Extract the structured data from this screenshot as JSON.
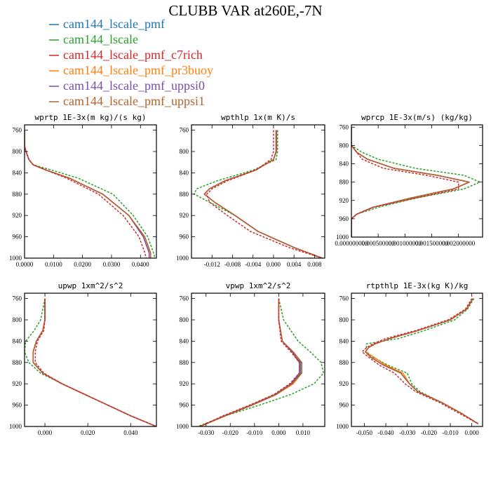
{
  "chart_data": {
    "title": "CLUBB VAR at260E,-7N",
    "series": [
      {
        "name": "cam144_lscale_pmf",
        "color": "#1f77b4"
      },
      {
        "name": "cam144_lscale",
        "color": "#2ca02c"
      },
      {
        "name": "cam144_lscale_pmf_c7rich",
        "color": "#d62728"
      },
      {
        "name": "cam144_lscale_pmf_pr3buoy",
        "color": "#ff7f0e"
      },
      {
        "name": "cam144_lscale_pmf_uppsi0",
        "color": "#7b4fa3"
      },
      {
        "name": "cam144_lscale_pmf_uppsi1",
        "color": "#b5622e"
      }
    ],
    "panels": [
      {
        "type": "line",
        "title": "wprtp  1E-3x(m kg)/(s kg)",
        "xlim": [
          0,
          0.0455
        ],
        "ylim": [
          1000,
          750
        ],
        "xticks": [
          0,
          0.01,
          0.02,
          0.03,
          0.04
        ],
        "xtick_labels": [
          "0.0000",
          "0.0100",
          "0.0200",
          "0.0300",
          "0.0400"
        ],
        "yticks": [
          760,
          800,
          840,
          880,
          920,
          960,
          1000
        ],
        "ytick_labels": [
          "760",
          "800",
          "840",
          "880",
          "920",
          "960",
          "1000"
        ],
        "p": [
          760,
          790,
          800,
          815,
          825,
          835,
          850,
          880,
          920,
          960,
          990,
          1000
        ],
        "lines": [
          [
            0.0,
            0.0,
            0.0005,
            0.0015,
            0.003,
            0.0075,
            0.0155,
            0.027,
            0.036,
            0.041,
            0.043,
            0.043
          ],
          [
            0.0,
            0.0,
            0.0005,
            0.0015,
            0.003,
            0.0095,
            0.0185,
            0.0305,
            0.0375,
            0.0425,
            0.0445,
            0.045
          ],
          [
            0.0,
            0.0,
            0.0005,
            0.0015,
            0.003,
            0.0075,
            0.0145,
            0.0255,
            0.034,
            0.0395,
            0.0415,
            0.042
          ],
          [
            0.0,
            0.0,
            0.0005,
            0.0015,
            0.003,
            0.0075,
            0.0155,
            0.027,
            0.036,
            0.041,
            0.043,
            0.043
          ],
          [
            0.0,
            0.0,
            0.0005,
            0.0015,
            0.003,
            0.0075,
            0.0155,
            0.027,
            0.036,
            0.041,
            0.043,
            0.043
          ],
          [
            0.0,
            0.0,
            0.0005,
            0.0015,
            0.003,
            0.0075,
            0.0155,
            0.027,
            0.036,
            0.0415,
            0.0435,
            0.0435
          ]
        ]
      },
      {
        "type": "line",
        "title": "wpthlp  1x(m K)/s",
        "xlim": [
          -0.016,
          0.01
        ],
        "ylim": [
          1000,
          750
        ],
        "xticks": [
          -0.012,
          -0.008,
          -0.004,
          0.0,
          0.004,
          0.008
        ],
        "xtick_labels": [
          "-0.012",
          "-0.008",
          "-0.004",
          "0.000",
          "0.004",
          "0.008"
        ],
        "yticks": [
          760,
          800,
          840,
          880,
          920,
          960,
          1000
        ],
        "ytick_labels": [
          "760",
          "800",
          "840",
          "880",
          "920",
          "960",
          "1000"
        ],
        "p": [
          760,
          800,
          815,
          835,
          855,
          870,
          880,
          895,
          920,
          950,
          980,
          1000
        ],
        "lines": [
          [
            0.0005,
            0.0005,
            0.0,
            -0.0035,
            -0.0095,
            -0.0125,
            -0.0135,
            -0.0115,
            -0.0075,
            -0.003,
            0.004,
            0.0095
          ],
          [
            0.0008,
            0.0008,
            0.0005,
            -0.004,
            -0.011,
            -0.015,
            -0.0155,
            -0.0125,
            -0.0075,
            -0.003,
            0.004,
            0.0095
          ],
          [
            0.0,
            0.0,
            -0.0005,
            -0.0035,
            -0.009,
            -0.012,
            -0.013,
            -0.0125,
            -0.009,
            -0.0045,
            0.003,
            0.0095
          ],
          [
            0.0005,
            0.0005,
            0.0,
            -0.0035,
            -0.0095,
            -0.0125,
            -0.0135,
            -0.0115,
            -0.0075,
            -0.003,
            0.004,
            0.0095
          ],
          [
            0.0005,
            0.0005,
            0.0,
            -0.0035,
            -0.0095,
            -0.0125,
            -0.0135,
            -0.0115,
            -0.0075,
            -0.003,
            0.004,
            0.0095
          ],
          [
            0.0006,
            0.0006,
            0.0,
            -0.0035,
            -0.0095,
            -0.0125,
            -0.0135,
            -0.0115,
            -0.0075,
            -0.003,
            0.004,
            0.0095
          ]
        ]
      },
      {
        "type": "line",
        "title": "wprcp  1E-3x(m/s) (kg/kg)",
        "xlim": [
          0,
          0.00245
        ],
        "ylim": [
          1000,
          755
        ],
        "xticks": [
          0,
          0.0005,
          0.001,
          0.0015,
          0.002
        ],
        "xtick_labels": [
          "0.000000000",
          "0.000500000",
          "0.001000000",
          "0.001500000",
          "0.002000000"
        ],
        "yticks": [
          760,
          800,
          840,
          880,
          920,
          960,
          1000
        ],
        "ytick_labels": [
          "760",
          "800",
          "840",
          "880",
          "920",
          "960",
          "1000"
        ],
        "p": [
          760,
          800,
          815,
          830,
          850,
          865,
          880,
          895,
          915,
          935,
          950,
          960,
          1000
        ],
        "lines": [
          [
            0.0,
            0.0,
            0.0001,
            0.0003,
            0.0008,
            0.0016,
            0.0022,
            0.0019,
            0.0011,
            0.0004,
            0.0001,
            0.0,
            0.0
          ],
          [
            0.0,
            0.0,
            0.0002,
            0.0005,
            0.0012,
            0.0021,
            0.0024,
            0.0021,
            0.0012,
            0.0005,
            0.0001,
            0.0,
            0.0
          ],
          [
            0.0,
            0.0,
            0.0001,
            0.0002,
            0.0006,
            0.0014,
            0.002,
            0.002,
            0.0012,
            0.0004,
            0.0001,
            0.0,
            0.0
          ],
          [
            0.0,
            0.0,
            0.0001,
            0.0003,
            0.0008,
            0.0016,
            0.0022,
            0.0019,
            0.0011,
            0.0004,
            0.0001,
            0.0,
            0.0
          ],
          [
            0.0,
            0.0,
            0.0001,
            0.0003,
            0.0008,
            0.0016,
            0.0022,
            0.0019,
            0.0011,
            0.0004,
            0.0001,
            0.0,
            0.0
          ],
          [
            0.0,
            0.0,
            0.0001,
            0.0003,
            0.0008,
            0.0016,
            0.0022,
            0.0019,
            0.0011,
            0.0004,
            0.0001,
            0.0,
            0.0
          ]
        ]
      },
      {
        "type": "line",
        "title": "upwp  1xm^2/s^2",
        "xlim": [
          -0.0095,
          0.052
        ],
        "ylim": [
          1000,
          750
        ],
        "xticks": [
          0.0,
          0.02,
          0.04
        ],
        "xtick_labels": [
          "0.000",
          "0.020",
          "0.040"
        ],
        "yticks": [
          760,
          800,
          840,
          880,
          920,
          960,
          1000
        ],
        "ytick_labels": [
          "760",
          "800",
          "840",
          "880",
          "920",
          "960",
          "1000"
        ],
        "p": [
          760,
          800,
          820,
          840,
          860,
          880,
          900,
          920,
          950,
          980,
          1000
        ],
        "lines": [
          [
            0.0,
            0.0,
            -0.001,
            -0.004,
            -0.0055,
            -0.0055,
            -0.001,
            0.008,
            0.024,
            0.04,
            0.052
          ],
          [
            0.0,
            -0.002,
            -0.005,
            -0.009,
            -0.0095,
            -0.0075,
            -0.002,
            0.008,
            0.024,
            0.04,
            0.052
          ],
          [
            0.0,
            0.0,
            -0.0005,
            -0.0035,
            -0.0045,
            -0.0045,
            -0.0005,
            0.008,
            0.024,
            0.04,
            0.052
          ],
          [
            0.0,
            0.0,
            -0.001,
            -0.004,
            -0.0055,
            -0.0055,
            -0.001,
            0.008,
            0.024,
            0.04,
            0.052
          ],
          [
            0.0,
            0.0,
            -0.001,
            -0.004,
            -0.0055,
            -0.0055,
            -0.001,
            0.008,
            0.024,
            0.04,
            0.052
          ],
          [
            0.0,
            0.0,
            -0.001,
            -0.004,
            -0.0055,
            -0.0055,
            -0.001,
            0.008,
            0.024,
            0.04,
            0.052
          ]
        ]
      },
      {
        "type": "line",
        "title": "vpwp  1xm^2/s^2",
        "xlim": [
          -0.036,
          0.019
        ],
        "ylim": [
          1000,
          750
        ],
        "xticks": [
          -0.03,
          -0.02,
          -0.01,
          0.0,
          0.01
        ],
        "xtick_labels": [
          "-0.030",
          "-0.020",
          "-0.010",
          "0.000",
          "0.010"
        ],
        "yticks": [
          760,
          800,
          840,
          880,
          920,
          960,
          1000
        ],
        "ytick_labels": [
          "760",
          "800",
          "840",
          "880",
          "920",
          "960",
          "1000"
        ],
        "p": [
          760,
          800,
          840,
          860,
          880,
          900,
          920,
          940,
          960,
          980,
          1000
        ],
        "lines": [
          [
            0.0,
            0.0,
            0.0015,
            0.0055,
            0.009,
            0.009,
            0.0055,
            -0.001,
            -0.011,
            -0.022,
            -0.0325
          ],
          [
            0.0,
            0.002,
            0.008,
            0.013,
            0.0175,
            0.0185,
            0.0145,
            0.005,
            -0.008,
            -0.022,
            -0.0335
          ],
          [
            0.0,
            0.0,
            0.001,
            0.005,
            0.0085,
            0.0085,
            0.0045,
            -0.002,
            -0.012,
            -0.023,
            -0.0325
          ],
          [
            0.0,
            0.0,
            0.0015,
            0.0055,
            0.0095,
            0.0095,
            0.006,
            -0.001,
            -0.011,
            -0.022,
            -0.0325
          ],
          [
            0.0,
            0.0,
            0.0015,
            0.0055,
            0.0085,
            0.0085,
            0.005,
            -0.0015,
            -0.0115,
            -0.0225,
            -0.0325
          ],
          [
            0.0,
            0.0,
            0.0015,
            0.006,
            0.0095,
            0.0095,
            0.0055,
            -0.001,
            -0.011,
            -0.022,
            -0.0325
          ]
        ]
      },
      {
        "type": "line",
        "title": "rtpthlp  1E-3x(kg K)/kg",
        "xlim": [
          -0.056,
          0.005
        ],
        "ylim": [
          1000,
          750
        ],
        "xticks": [
          -0.05,
          -0.04,
          -0.03,
          -0.02,
          -0.01,
          0.0
        ],
        "xtick_labels": [
          "-0.050",
          "-0.040",
          "-0.030",
          "-0.020",
          "-0.010",
          "0.000"
        ],
        "yticks": [
          760,
          800,
          840,
          880,
          920,
          960,
          1000
        ],
        "ytick_labels": [
          "760",
          "800",
          "840",
          "880",
          "920",
          "960",
          "1000"
        ],
        "p": [
          760,
          780,
          800,
          820,
          835,
          845,
          852,
          860,
          870,
          885,
          900,
          920,
          935,
          955,
          975,
          995
        ],
        "lines": [
          [
            0.0005,
            -0.0025,
            -0.01,
            -0.025,
            -0.038,
            -0.045,
            -0.048,
            -0.0495,
            -0.047,
            -0.041,
            -0.033,
            -0.029,
            -0.025,
            -0.014,
            -0.005,
            0.003
          ],
          [
            0.001,
            -0.002,
            -0.008,
            -0.022,
            -0.034,
            -0.049,
            -0.049,
            -0.049,
            -0.046,
            -0.039,
            -0.03,
            -0.028,
            -0.024,
            -0.014,
            -0.005,
            0.003
          ],
          [
            0.0,
            -0.003,
            -0.011,
            -0.026,
            -0.04,
            -0.046,
            -0.049,
            -0.051,
            -0.048,
            -0.043,
            -0.036,
            -0.031,
            -0.026,
            -0.015,
            -0.006,
            0.003
          ],
          [
            0.0005,
            -0.0025,
            -0.01,
            -0.025,
            -0.038,
            -0.045,
            -0.048,
            -0.0495,
            -0.0455,
            -0.04,
            -0.032,
            -0.029,
            -0.025,
            -0.014,
            -0.005,
            0.003
          ],
          [
            0.0005,
            -0.0025,
            -0.01,
            -0.025,
            -0.038,
            -0.045,
            -0.048,
            -0.0495,
            -0.047,
            -0.041,
            -0.033,
            -0.029,
            -0.025,
            -0.014,
            -0.005,
            0.003
          ],
          [
            0.0005,
            -0.0025,
            -0.01,
            -0.025,
            -0.038,
            -0.045,
            -0.048,
            -0.0495,
            -0.047,
            -0.041,
            -0.033,
            -0.029,
            -0.025,
            -0.014,
            -0.005,
            0.003
          ]
        ]
      }
    ]
  }
}
